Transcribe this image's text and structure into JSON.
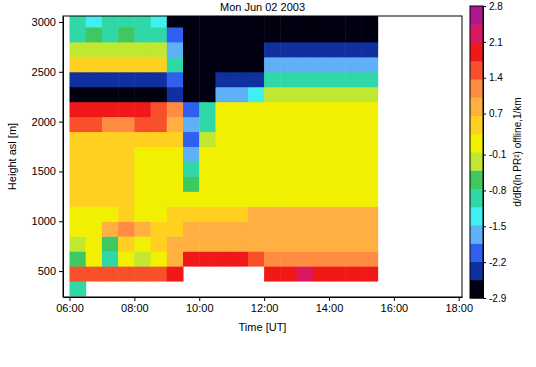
{
  "chart_data": {
    "type": "heatmap",
    "title": "Mon Jun 02 2003",
    "x_label": "Time [UT]",
    "y_label": "Height asl [m]",
    "x": [
      6.25,
      6.75,
      7.25,
      7.75,
      8.25,
      8.75,
      9.25,
      9.75,
      10.25,
      10.75,
      11.25,
      11.75,
      12.25,
      12.75,
      13.25,
      13.75,
      14.25,
      14.75,
      15.25
    ],
    "y": [
      325,
      475,
      625,
      775,
      925,
      1075,
      1225,
      1375,
      1525,
      1675,
      1825,
      1975,
      2125,
      2275,
      2425,
      2575,
      2725,
      2875,
      3025
    ],
    "z": [
      [
        -1.0,
        null,
        null,
        null,
        null,
        null,
        null,
        null,
        null,
        null,
        null,
        null,
        null,
        null,
        null,
        null,
        null,
        null,
        null
      ],
      [
        1.5,
        1.6,
        1.5,
        1.7,
        1.5,
        1.6,
        1.8,
        null,
        null,
        null,
        null,
        null,
        2.0,
        2.0,
        2.1,
        2.0,
        2.0,
        2.0,
        2.0
      ],
      [
        -0.5,
        0.0,
        -0.8,
        0.2,
        -0.3,
        0.3,
        1.0,
        1.8,
        1.9,
        1.8,
        1.8,
        1.7,
        1.2,
        1.2,
        1.1,
        1.2,
        1.2,
        1.1,
        1.2
      ],
      [
        -0.3,
        0.2,
        -0.5,
        0.5,
        0.0,
        0.5,
        0.8,
        0.9,
        0.9,
        0.9,
        0.9,
        0.9,
        0.9,
        0.9,
        0.9,
        0.9,
        0.9,
        0.9,
        0.9
      ],
      [
        0.2,
        0.2,
        1.0,
        1.1,
        0.9,
        0.5,
        0.6,
        0.8,
        0.8,
        0.8,
        0.8,
        0.8,
        0.8,
        0.8,
        0.8,
        0.8,
        0.8,
        0.8,
        0.8
      ],
      [
        0.3,
        0.3,
        0.3,
        0.4,
        0.3,
        0.3,
        0.4,
        0.6,
        0.6,
        0.6,
        0.6,
        0.7,
        0.7,
        0.7,
        0.7,
        0.7,
        0.7,
        0.7,
        0.7
      ],
      [
        0.4,
        0.4,
        0.4,
        0.4,
        0.3,
        0.3,
        0.3,
        0.2,
        0.3,
        0.3,
        0.3,
        0.3,
        0.3,
        0.3,
        0.3,
        0.3,
        0.3,
        0.3,
        0.3
      ],
      [
        0.4,
        0.4,
        0.4,
        0.4,
        0.3,
        0.3,
        0.3,
        -0.5,
        0.3,
        0.3,
        0.2,
        0.2,
        0.2,
        0.2,
        0.2,
        0.2,
        0.2,
        0.2,
        0.2
      ],
      [
        0.4,
        0.4,
        0.4,
        0.4,
        0.3,
        0.3,
        0.2,
        -1.0,
        0.2,
        0.2,
        0.2,
        0.2,
        0.2,
        0.2,
        0.2,
        0.2,
        0.2,
        0.2,
        0.2
      ],
      [
        0.4,
        0.4,
        0.4,
        0.4,
        0.3,
        0.3,
        0.2,
        -1.5,
        0.1,
        0.2,
        0.2,
        0.2,
        0.2,
        0.2,
        0.2,
        0.2,
        0.2,
        0.2,
        0.2
      ],
      [
        0.6,
        0.6,
        0.6,
        0.5,
        0.5,
        0.5,
        0.4,
        -2.0,
        -0.3,
        0.2,
        0.2,
        0.2,
        0.2,
        0.2,
        0.2,
        0.2,
        0.2,
        0.2,
        0.2
      ],
      [
        1.4,
        1.4,
        1.3,
        1.3,
        1.4,
        1.4,
        1.0,
        -1.5,
        -0.8,
        0.3,
        0.3,
        0.3,
        0.3,
        0.3,
        0.3,
        0.3,
        0.3,
        0.3,
        0.3
      ],
      [
        1.8,
        1.8,
        1.9,
        1.8,
        1.8,
        1.7,
        1.2,
        -2.0,
        -1.0,
        0.1,
        0.2,
        0.2,
        0.2,
        0.2,
        0.2,
        0.2,
        0.2,
        0.2,
        0.2
      ],
      [
        -2.9,
        -2.9,
        -2.9,
        -2.9,
        -2.9,
        -2.8,
        -2.5,
        -2.9,
        -2.9,
        -1.5,
        -1.5,
        -1.2,
        -0.3,
        -0.3,
        -0.3,
        -0.3,
        -0.3,
        -0.3,
        -0.3
      ],
      [
        -2.2,
        -2.4,
        -2.3,
        -2.5,
        -2.2,
        -2.3,
        -2.0,
        -2.9,
        -2.9,
        -2.5,
        -2.5,
        -2.2,
        -0.8,
        -0.8,
        -0.8,
        -0.8,
        -0.8,
        -0.8,
        -0.8
      ],
      [
        0.6,
        0.5,
        0.6,
        0.5,
        0.6,
        0.4,
        -1.0,
        -2.9,
        -2.9,
        -2.9,
        -2.9,
        -2.9,
        -1.8,
        -1.8,
        -1.8,
        -1.8,
        -1.8,
        -1.8,
        -1.8
      ],
      [
        -0.2,
        -0.1,
        -0.3,
        -0.2,
        -0.2,
        -0.4,
        -1.5,
        -2.9,
        -2.9,
        -2.9,
        -2.9,
        -2.9,
        -2.5,
        -2.5,
        -2.5,
        -2.5,
        -2.5,
        -2.5,
        -2.5
      ],
      [
        -0.8,
        -0.6,
        -0.9,
        -0.7,
        -0.8,
        -1.0,
        -2.0,
        -2.9,
        -2.9,
        -2.9,
        -2.9,
        -2.9,
        -2.9,
        -2.9,
        -2.9,
        -2.9,
        -2.9,
        -2.9,
        -2.9
      ],
      [
        -1.0,
        -1.2,
        -0.9,
        -1.1,
        -1.0,
        -1.3,
        -2.9,
        -2.9,
        -2.9,
        -2.9,
        -2.9,
        -2.9,
        -2.9,
        -2.9,
        -2.9,
        -2.9,
        -2.9,
        -2.9,
        -2.9
      ]
    ],
    "xlim": [
      5.8,
      18.1
    ],
    "xticks": [
      {
        "value": 6,
        "label": "06:00"
      },
      {
        "value": 8,
        "label": "08:00"
      },
      {
        "value": 10,
        "label": "10:00"
      },
      {
        "value": 12,
        "label": "12:00"
      },
      {
        "value": 14,
        "label": "14:00"
      },
      {
        "value": 16,
        "label": "16:00"
      },
      {
        "value": 18,
        "label": "18:00"
      }
    ],
    "ylim": [
      240,
      3060
    ],
    "yticks": [
      500,
      1000,
      1500,
      2000,
      2500,
      3000
    ],
    "colorbar": {
      "label": "d/dR(ln PR²) offline,1/km",
      "range": [
        -2.9,
        2.8
      ],
      "ticks": [
        -2.9,
        -2.2,
        -1.5,
        -0.8,
        -0.1,
        0.7,
        1.4,
        2.1,
        2.8
      ],
      "colors": [
        "#000010",
        "#1030a0",
        "#3060f0",
        "#60b0f8",
        "#40f0f0",
        "#30d8a8",
        "#40c860",
        "#c0e830",
        "#f0f000",
        "#ffd020",
        "#ffb040",
        "#ff8c40",
        "#f8502a",
        "#f01818",
        "#d81860",
        "#b0168f"
      ]
    }
  }
}
